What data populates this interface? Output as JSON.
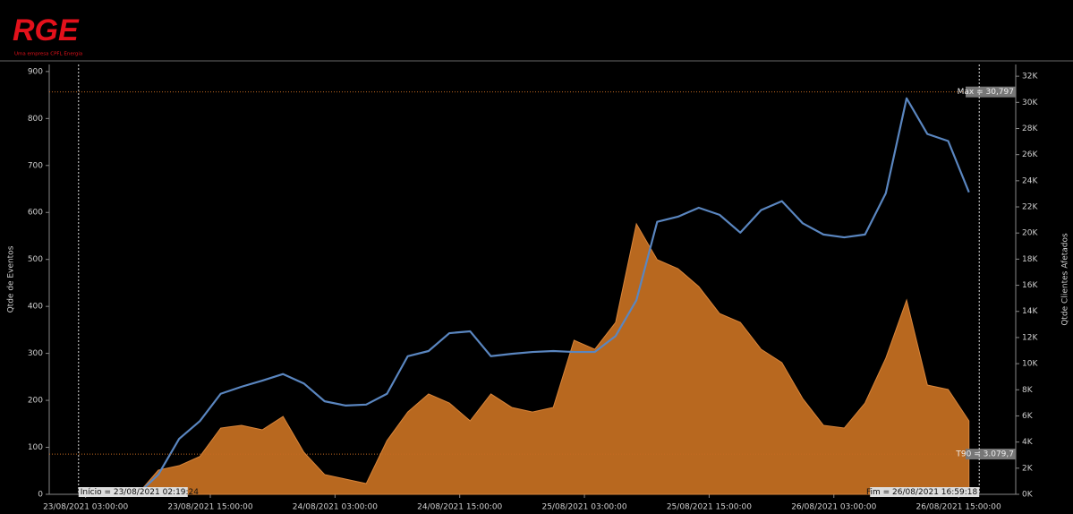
{
  "header": {
    "logo": "RGE",
    "tagline": "Uma empresa CPFL Energia"
  },
  "chart_data": {
    "type": "area-line",
    "ylabel": "Qtde de Eventos",
    "y2label": "Qtde Clientes Afetados",
    "xlim": [
      "22/08/2021 23:30:00",
      "26/08/2021 20:30:00"
    ],
    "xticks": [
      "23/08/2021 03:00:00",
      "23/08/2021 15:00:00",
      "24/08/2021 03:00:00",
      "24/08/2021 15:00:00",
      "25/08/2021 03:00:00",
      "25/08/2021 15:00:00",
      "26/08/2021 03:00:00",
      "26/08/2021 15:00:00"
    ],
    "ylim": [
      0,
      915
    ],
    "yticks": [
      0,
      100,
      200,
      300,
      400,
      500,
      600,
      700,
      800,
      900
    ],
    "y2lim": [
      0,
      32900
    ],
    "y2ticks": [
      {
        "value": 0,
        "label": "0K"
      },
      {
        "value": 2000,
        "label": "2K"
      },
      {
        "value": 4000,
        "label": "4K"
      },
      {
        "value": 6000,
        "label": "6K"
      },
      {
        "value": 8000,
        "label": "8K"
      },
      {
        "value": 10000,
        "label": "10K"
      },
      {
        "value": 12000,
        "label": "12K"
      },
      {
        "value": 14000,
        "label": "14K"
      },
      {
        "value": 16000,
        "label": "16K"
      },
      {
        "value": 18000,
        "label": "18K"
      },
      {
        "value": 20000,
        "label": "20K"
      },
      {
        "value": 22000,
        "label": "22K"
      },
      {
        "value": 24000,
        "label": "24K"
      },
      {
        "value": 26000,
        "label": "26K"
      },
      {
        "value": 28000,
        "label": "28K"
      },
      {
        "value": 30000,
        "label": "30K"
      },
      {
        "value": 32000,
        "label": "32K"
      }
    ],
    "x": [
      "23/08/2021 04:00:00",
      "23/08/2021 06:00:00",
      "23/08/2021 08:00:00",
      "23/08/2021 10:00:00",
      "23/08/2021 12:00:00",
      "23/08/2021 14:00:00",
      "23/08/2021 16:00:00",
      "23/08/2021 18:00:00",
      "23/08/2021 20:00:00",
      "23/08/2021 22:00:00",
      "24/08/2021 00:00:00",
      "24/08/2021 02:00:00",
      "24/08/2021 04:00:00",
      "24/08/2021 06:00:00",
      "24/08/2021 08:00:00",
      "24/08/2021 10:00:00",
      "24/08/2021 12:00:00",
      "24/08/2021 14:00:00",
      "24/08/2021 16:00:00",
      "24/08/2021 18:00:00",
      "24/08/2021 20:00:00",
      "24/08/2021 22:00:00",
      "25/08/2021 00:00:00",
      "25/08/2021 02:00:00",
      "25/08/2021 04:00:00",
      "25/08/2021 06:00:00",
      "25/08/2021 08:00:00",
      "25/08/2021 10:00:00",
      "25/08/2021 12:00:00",
      "25/08/2021 14:00:00",
      "25/08/2021 16:00:00",
      "25/08/2021 18:00:00",
      "25/08/2021 20:00:00",
      "25/08/2021 22:00:00",
      "26/08/2021 00:00:00",
      "26/08/2021 02:00:00",
      "26/08/2021 04:00:00",
      "26/08/2021 06:00:00",
      "26/08/2021 08:00:00",
      "26/08/2021 10:00:00",
      "26/08/2021 12:00:00",
      "26/08/2021 14:00:00",
      "26/08/2021 16:00:00"
    ],
    "series": [
      {
        "kind": "area",
        "axis": "y2",
        "color": "#b8681f",
        "values": [
          0,
          0,
          0,
          1850,
          2190,
          2900,
          5070,
          5280,
          4935,
          5960,
          3220,
          1510,
          1165,
          820,
          4110,
          6300,
          7680,
          6990,
          5620,
          7680,
          6650,
          6300,
          6650,
          11790,
          11100,
          13160,
          20700,
          17960,
          17270,
          15900,
          13840,
          13160,
          11100,
          10080,
          7330,
          5280,
          5070,
          6990,
          10420,
          14870,
          8360,
          8020,
          5620
        ]
      },
      {
        "kind": "line",
        "axis": "y",
        "color": "#5a86c0",
        "values": [
          0,
          0,
          0,
          42,
          118,
          156,
          214,
          229,
          242,
          256,
          236,
          198,
          189,
          191,
          214,
          294,
          305,
          343,
          347,
          294,
          299,
          303,
          305,
          303,
          303,
          337,
          413,
          580,
          591,
          610,
          595,
          557,
          605,
          624,
          577,
          553,
          547,
          553,
          641,
          843,
          767,
          752,
          643
        ]
      }
    ],
    "hlines": [
      {
        "label": "Max = 30,797",
        "value": 30797,
        "axis": "y2"
      },
      {
        "label": "T90 = 3.079,7",
        "value": 3079.7,
        "axis": "y2"
      }
    ],
    "vlines": [
      {
        "label": "Início = 23/08/2021 02:19:24",
        "x": "23/08/2021 02:19:24"
      },
      {
        "label": "Fim = 26/08/2021 16:59:18",
        "x": "26/08/2021 16:59:18"
      }
    ]
  }
}
